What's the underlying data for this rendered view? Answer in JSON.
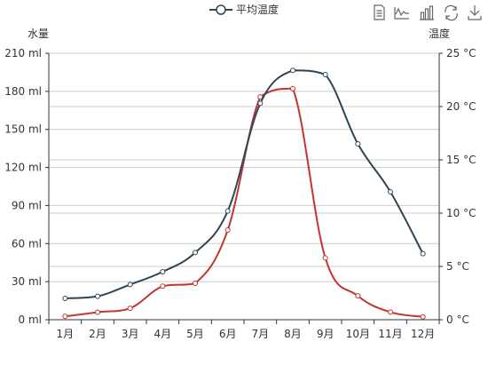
{
  "legend": {
    "label": "平均温度"
  },
  "toolbox": {
    "icons": [
      "data-view-icon",
      "line-chart-icon",
      "bar-chart-icon",
      "restore-icon",
      "save-image-icon"
    ]
  },
  "colors": {
    "temperature": "#2f4554",
    "water": "#c23531",
    "grid": "#cccccc",
    "axis": "#333333"
  },
  "chart_data": {
    "type": "line",
    "categories": [
      "1月",
      "2月",
      "3月",
      "4月",
      "5月",
      "6月",
      "7月",
      "8月",
      "9月",
      "10月",
      "11月",
      "12月"
    ],
    "y_left": {
      "name": "水量",
      "min": 0,
      "max": 210,
      "interval": 30,
      "unit": "ml",
      "ticks": [
        "0 ml",
        "30 ml",
        "60 ml",
        "90 ml",
        "120 ml",
        "150 ml",
        "180 ml",
        "210 ml"
      ]
    },
    "y_right": {
      "name": "温度",
      "min": 0,
      "max": 25,
      "interval": 5,
      "unit": "°C",
      "ticks": [
        "0 °C",
        "5 °C",
        "10 °C",
        "15 °C",
        "20 °C",
        "25 °C"
      ]
    },
    "series": [
      {
        "name": "",
        "axis": "left",
        "color": "#c23531",
        "values": [
          2.6,
          5.9,
          9.0,
          26.4,
          28.7,
          70.7,
          175.6,
          182.2,
          48.7,
          18.8,
          6.0,
          2.3
        ]
      },
      {
        "name": "平均温度",
        "axis": "right",
        "color": "#2f4554",
        "values": [
          2.0,
          2.2,
          3.3,
          4.5,
          6.3,
          10.2,
          20.3,
          23.4,
          23.0,
          16.5,
          12.0,
          6.2
        ]
      }
    ],
    "smooth": true,
    "grid": true
  }
}
